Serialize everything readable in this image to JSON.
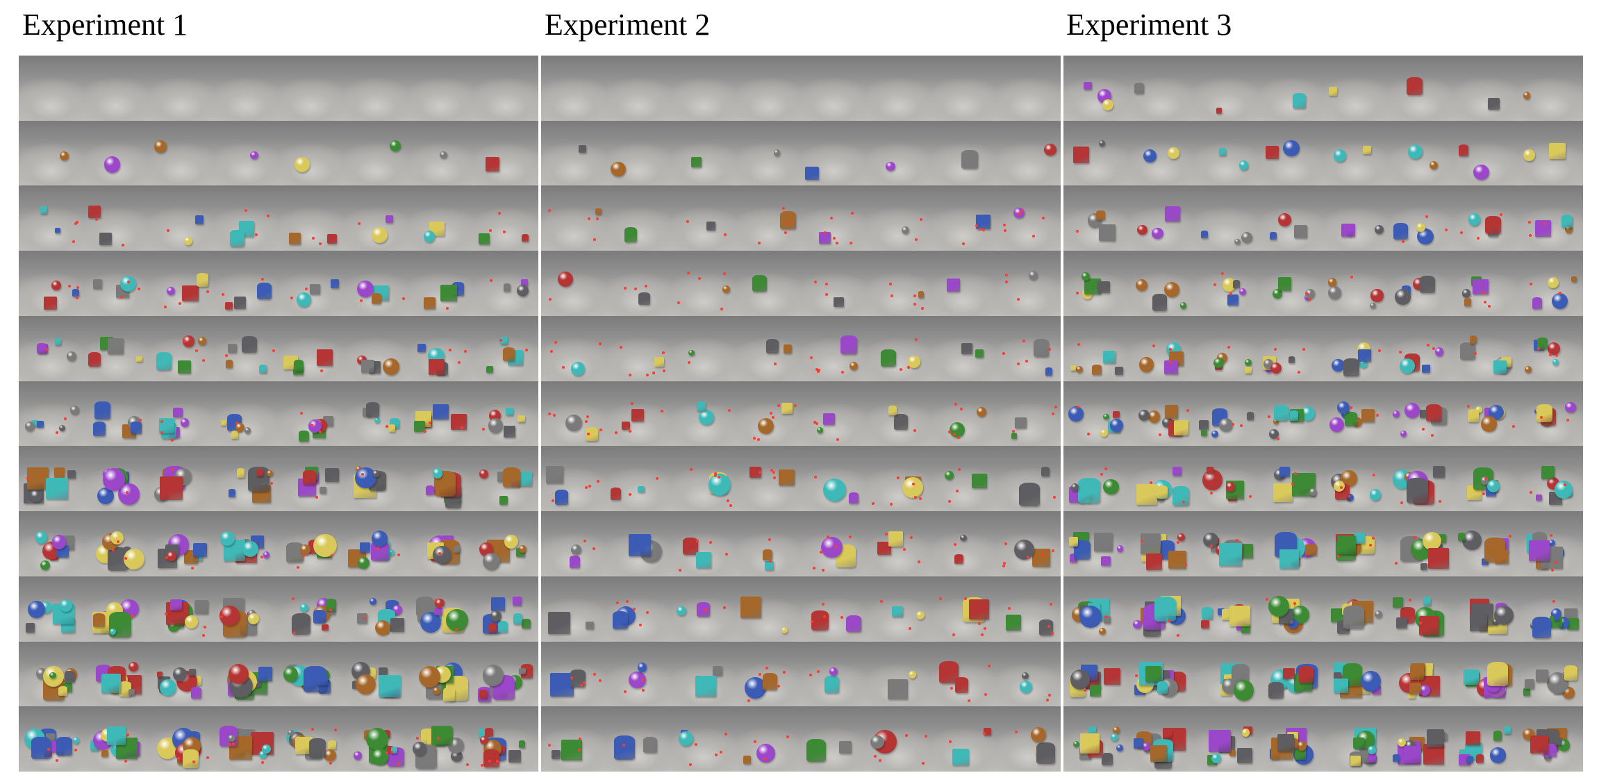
{
  "panels": [
    {
      "title": "Experiment 1"
    },
    {
      "title": "Experiment 2"
    },
    {
      "title": "Experiment 3"
    }
  ],
  "grid": {
    "rows": 11,
    "cols": 8
  },
  "palette": {
    "gray": "#7a7a7a",
    "metal": "#5e5e62",
    "cyan": "#3fb8b8",
    "purple": "#9b47c9",
    "green": "#3d8a35",
    "red": "#b53535",
    "blue": "#3b5bb5",
    "brown": "#a5682a",
    "yellow": "#d9c85a",
    "marker": "#ff3b30"
  }
}
